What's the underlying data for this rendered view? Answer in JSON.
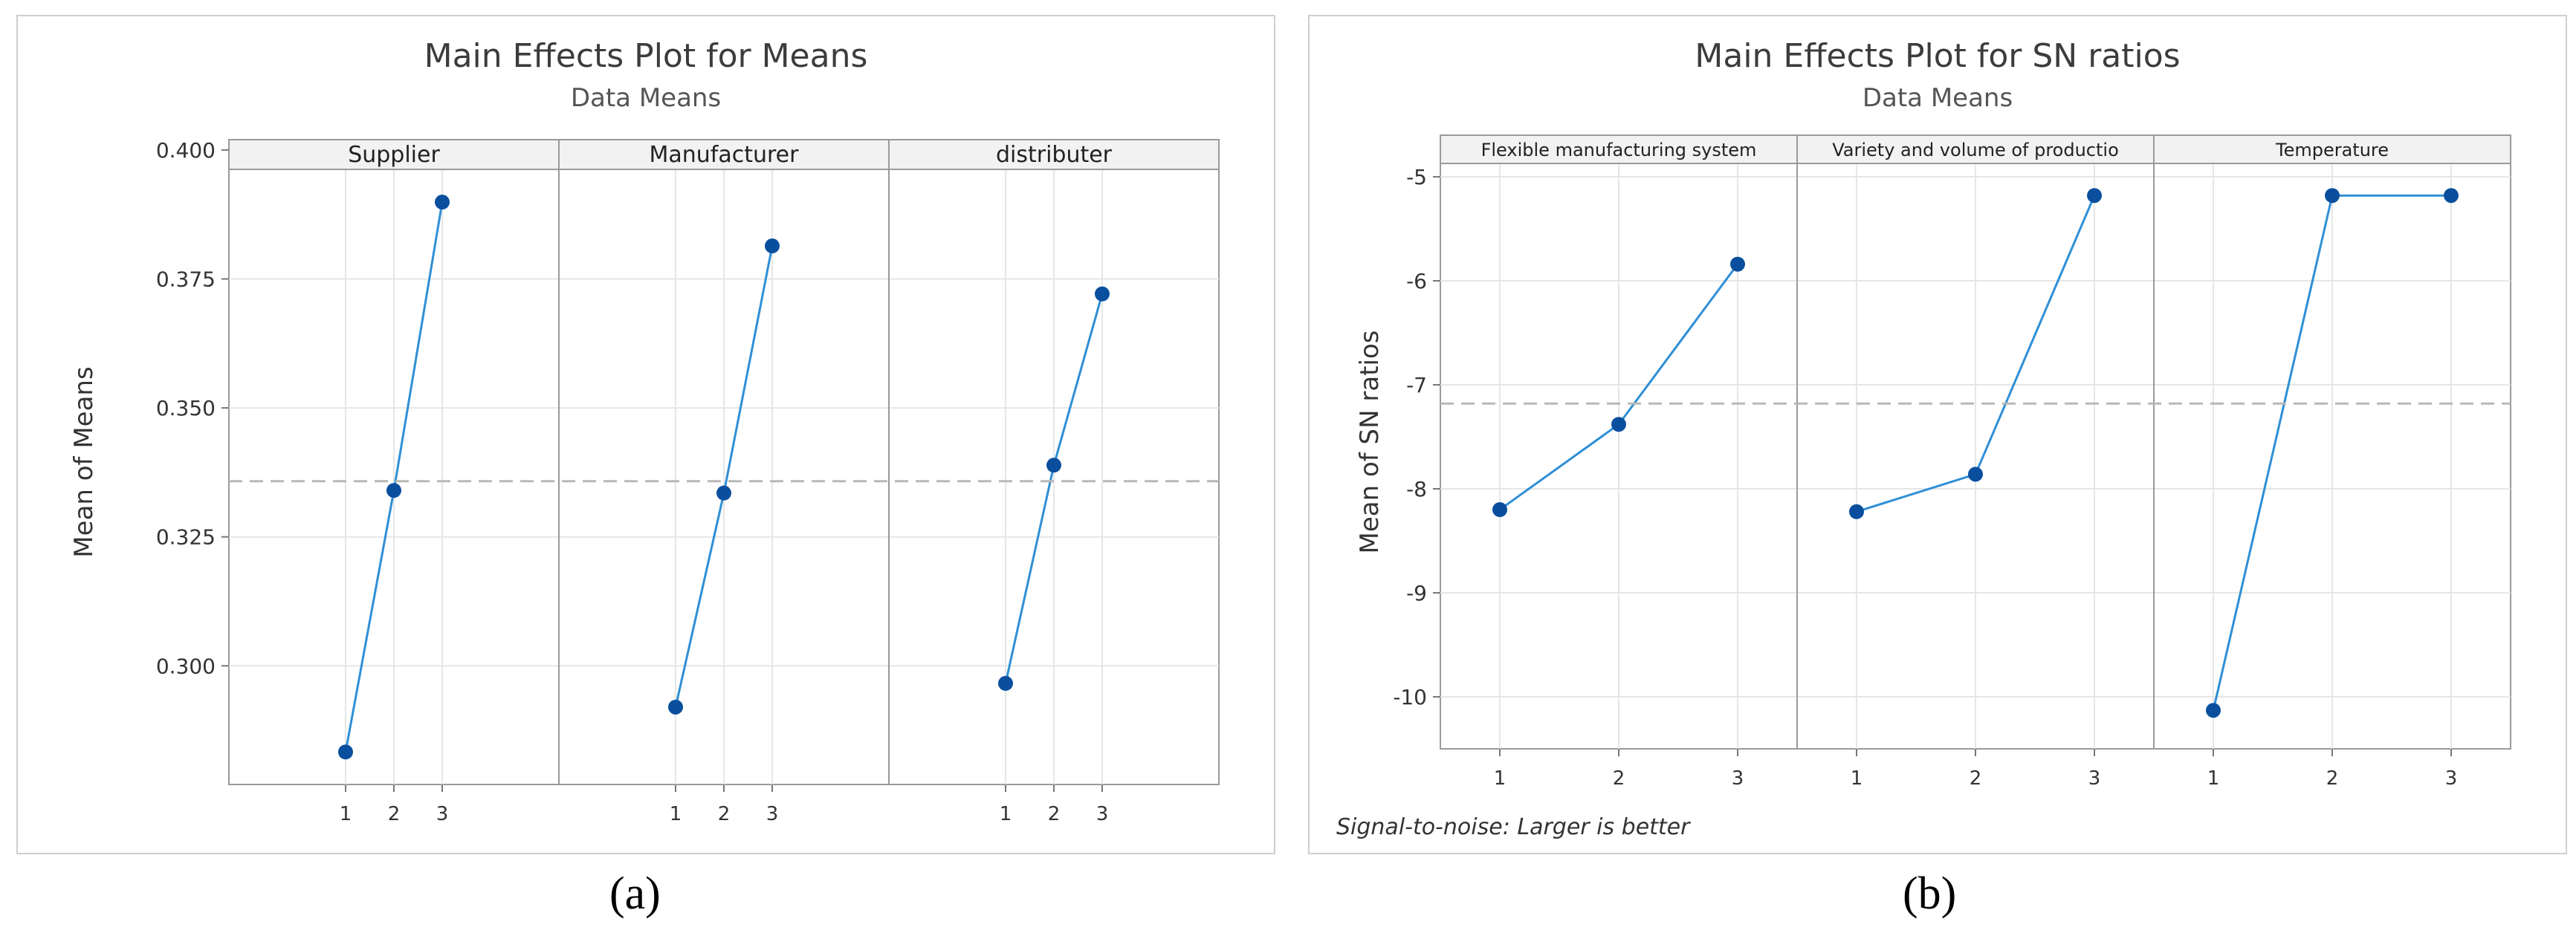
{
  "chart_data": [
    {
      "type": "line",
      "title": "Main Effects Plot for Means",
      "subtitle": "Data Means",
      "ylabel": "Mean of Means",
      "ylim": [
        0.277,
        0.402
      ],
      "yticks": [
        "0.400",
        "0.375",
        "0.350",
        "0.325",
        "0.300"
      ],
      "ytick_values": [
        0.4,
        0.375,
        0.35,
        0.325,
        0.3
      ],
      "reference_line": 0.3358,
      "grid": true,
      "caption": "(a)",
      "panels": [
        {
          "name": "Supplier",
          "x": [
            "1",
            "2",
            "3"
          ],
          "values": [
            0.2833,
            0.334,
            0.3899
          ]
        },
        {
          "name": "Manufacturer",
          "x": [
            "1",
            "2",
            "3"
          ],
          "values": [
            0.292,
            0.3335,
            0.3814
          ]
        },
        {
          "name": "distributer",
          "x": [
            "1",
            "2",
            "3"
          ],
          "values": [
            0.2966,
            0.3389,
            0.3721
          ]
        }
      ],
      "colors": {
        "line": "#2f8fd6",
        "marker": "#0a4f9e",
        "reference": "#b8b8b8"
      }
    },
    {
      "type": "line",
      "title": "Main Effects Plot for SN ratios",
      "subtitle": "Data Means",
      "ylabel": "Mean of SN ratios",
      "ylim": [
        -10.5,
        -4.6
      ],
      "yticks": [
        "-5",
        "-6",
        "-7",
        "-8",
        "-9",
        "-10"
      ],
      "ytick_values": [
        -5,
        -6,
        -7,
        -8,
        -9,
        -10
      ],
      "reference_line": -7.18,
      "grid": true,
      "footnote": "Signal-to-noise: Larger is better",
      "caption": "(b)",
      "panels": [
        {
          "name": "Flexible manufacturing system",
          "x": [
            "1",
            "2",
            "3"
          ],
          "values": [
            -8.2,
            -7.38,
            -5.84
          ]
        },
        {
          "name": "Variety and volume of productio",
          "x": [
            "1",
            "2",
            "3"
          ],
          "values": [
            -8.22,
            -7.86,
            -5.18
          ]
        },
        {
          "name": "Temperature",
          "x": [
            "1",
            "2",
            "3"
          ],
          "values": [
            -10.13,
            -5.18,
            -5.18
          ]
        }
      ],
      "colors": {
        "line": "#2f8fd6",
        "marker": "#0a4f9e",
        "reference": "#b8b8b8"
      }
    }
  ]
}
